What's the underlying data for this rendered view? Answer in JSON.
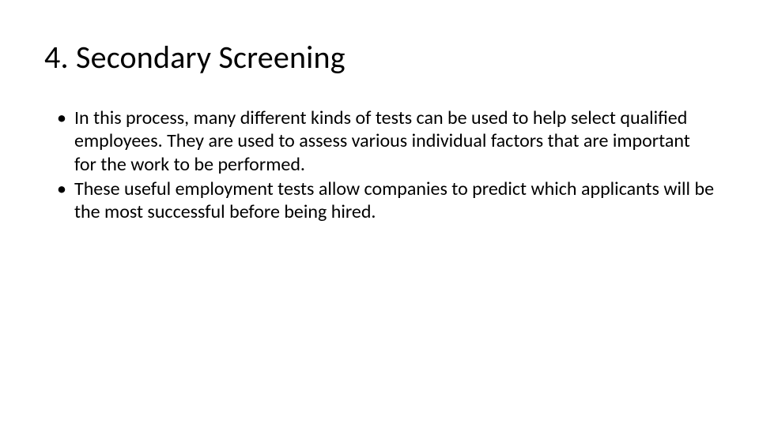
{
  "slide": {
    "background_color": "#ffffff",
    "title": {
      "text": "4. Secondary Screening",
      "font_size_pt": 40,
      "font_weight": 400,
      "color": "#000000"
    },
    "bullets": {
      "font_size_pt": 24,
      "color": "#000000",
      "bullet_char": "•",
      "items": [
        "In this process, many different kinds of tests can be used to help select qualified employees. They are used to assess various individual factors that are important for the work to be performed.",
        "These useful employment tests allow companies to predict which applicants will be the most successful before being hired."
      ]
    }
  }
}
